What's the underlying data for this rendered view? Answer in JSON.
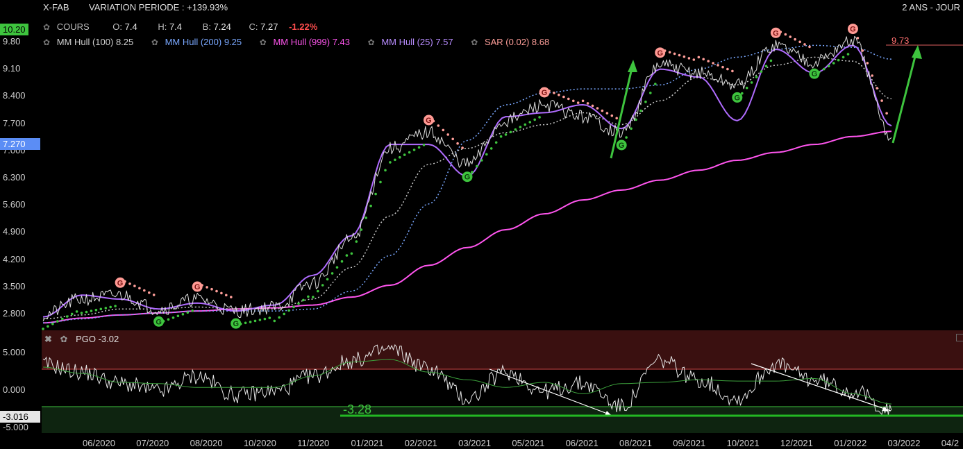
{
  "header": {
    "symbol": "X-FAB",
    "variation": "VARIATION PERIODE : +139.93%",
    "period": "2 ANS - JOUR"
  },
  "legend": {
    "cours_label": "COURS",
    "o_label": "O:",
    "o": "7.4",
    "h_label": "H:",
    "h": "7.4",
    "b_label": "B:",
    "b": "7.24",
    "c_label": "C:",
    "c": "7.27",
    "chg": "-1.22%",
    "hull100": "MM Hull (100)",
    "hull100_val": "8.25",
    "hull200": "MM Hull (200)",
    "hull200_val": "9.25",
    "hull999": "MM Hull (999)",
    "hull999_val": "7.43",
    "hull25": "MM Hull (25)",
    "hull25_val": "7.57",
    "sar": "SAR (0.02)",
    "sar_val": "8.68"
  },
  "price_axis": {
    "ticks": [
      "9.80",
      "9.10",
      "8.400",
      "7.700",
      "7.000",
      "6.300",
      "5.600",
      "4.900",
      "4.200",
      "3.500",
      "2.800"
    ],
    "top_badge": "10.20",
    "last_badge": "7.270"
  },
  "pgo": {
    "title": "PGO",
    "value": "-3.02",
    "ticks": [
      "5.000",
      "0.000",
      "-5.000"
    ],
    "last_badge": "-3.016",
    "level_label": "-3.28"
  },
  "x_ticks": [
    "06/2020",
    "07/2020",
    "08/2020",
    "10/2020",
    "11/2020",
    "01/2021",
    "02/2021",
    "03/2021",
    "05/2021",
    "06/2021",
    "08/2021",
    "09/2021",
    "10/2021",
    "12/2021",
    "01/2022",
    "03/2022",
    "04/2"
  ],
  "annotations": {
    "target": "9.73"
  },
  "colors": {
    "price": "#dddddd",
    "hull25": "#b06cff",
    "hull100": "#c8c8c8",
    "hull200": "#7aa8ff",
    "hull999": "#ff55ee",
    "sar_up": "#3ec43e",
    "sar_down": "#ff9f9a",
    "arrow": "#3ec43e",
    "overbought_zone": "#3a1010",
    "oversold_zone": "#0e2410"
  },
  "chart_data": [
    {
      "type": "line",
      "title": "X-FAB",
      "x": [
        "2020-04",
        "2020-05",
        "2020-06",
        "2020-07",
        "2020-08",
        "2020-09",
        "2020-10",
        "2020-11",
        "2020-12",
        "2021-01",
        "2021-02",
        "2021-03",
        "2021-04",
        "2021-05",
        "2021-06",
        "2021-07",
        "2021-08",
        "2021-09",
        "2021-10",
        "2021-11",
        "2021-12",
        "2022-01",
        "2022-02"
      ],
      "series": [
        {
          "name": "COURS",
          "values": [
            2.8,
            3.2,
            3.3,
            2.95,
            3.2,
            2.9,
            3.0,
            3.6,
            4.7,
            7.0,
            7.4,
            6.6,
            7.7,
            8.1,
            7.8,
            7.4,
            9.1,
            8.9,
            8.6,
            9.6,
            9.2,
            9.7,
            7.27
          ]
        },
        {
          "name": "MM Hull (25)",
          "values": [
            2.75,
            3.3,
            3.2,
            2.95,
            3.1,
            2.9,
            3.05,
            3.8,
            4.8,
            7.1,
            7.1,
            6.3,
            7.8,
            7.9,
            8.1,
            7.5,
            9.0,
            8.8,
            7.7,
            9.5,
            8.9,
            9.6,
            7.57
          ]
        },
        {
          "name": "MM Hull (100)",
          "values": [
            2.7,
            2.8,
            2.95,
            2.95,
            3.0,
            2.95,
            2.95,
            3.2,
            4.0,
            5.3,
            6.6,
            7.0,
            7.4,
            7.6,
            7.9,
            7.6,
            8.2,
            8.8,
            8.6,
            9.1,
            9.3,
            9.2,
            8.25
          ]
        },
        {
          "name": "MM Hull (200)",
          "values": [
            2.6,
            2.7,
            2.8,
            2.85,
            2.9,
            2.9,
            2.9,
            2.95,
            3.4,
            4.3,
            5.6,
            7.2,
            8.1,
            8.4,
            8.5,
            8.5,
            8.6,
            9.0,
            9.3,
            9.5,
            9.6,
            9.55,
            9.25
          ]
        },
        {
          "name": "MM Hull (999)",
          "values": [
            2.6,
            2.72,
            2.8,
            2.85,
            2.9,
            2.95,
            2.98,
            3.05,
            3.25,
            3.55,
            4.05,
            4.5,
            4.95,
            5.35,
            5.7,
            5.95,
            6.2,
            6.45,
            6.7,
            6.9,
            7.1,
            7.3,
            7.43
          ]
        }
      ],
      "ylim": [
        2.5,
        10.2
      ]
    },
    {
      "type": "line",
      "title": "PGO",
      "x": [
        "2020-04",
        "2020-05",
        "2020-06",
        "2020-07",
        "2020-08",
        "2020-09",
        "2020-10",
        "2020-11",
        "2020-12",
        "2021-01",
        "2021-02",
        "2021-03",
        "2021-04",
        "2021-05",
        "2021-06",
        "2021-07",
        "2021-08",
        "2021-09",
        "2021-10",
        "2021-11",
        "2021-12",
        "2022-01",
        "2022-02"
      ],
      "series": [
        {
          "name": "PGO",
          "values": [
            3.0,
            2.0,
            0.5,
            -0.5,
            1.5,
            -1.0,
            -0.5,
            1.5,
            3.5,
            5.0,
            2.5,
            -1.5,
            2.0,
            -0.5,
            0.5,
            -2.5,
            3.5,
            1.0,
            -1.5,
            3.0,
            1.0,
            -0.5,
            -3.02
          ]
        }
      ],
      "ylim": [
        -6,
        7.5
      ]
    }
  ]
}
